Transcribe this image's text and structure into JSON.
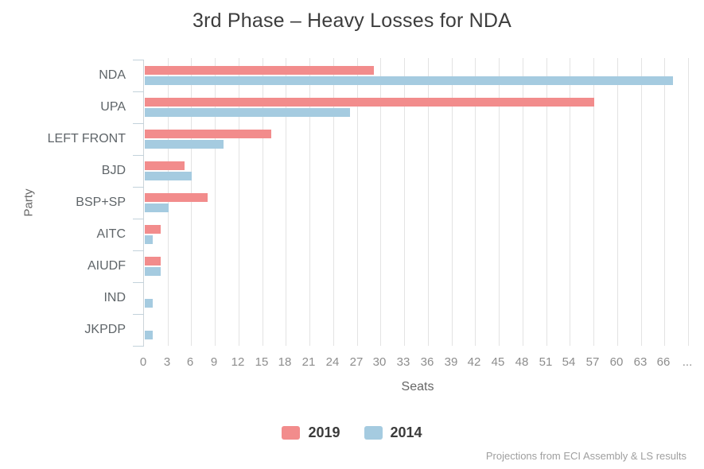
{
  "title": "3rd Phase – Heavy Losses for NDA",
  "chart_data": {
    "type": "bar",
    "orientation": "horizontal",
    "title": "3rd Phase – Heavy Losses for NDA",
    "xlabel": "Seats",
    "ylabel": "Party",
    "categories": [
      "NDA",
      "UPA",
      "LEFT FRONT",
      "BJD",
      "BSP+SP",
      "AITC",
      "AIUDF",
      "IND",
      "JKPDP"
    ],
    "series": [
      {
        "name": "2019",
        "color": "#F28C8C",
        "values": [
          29,
          57,
          16,
          5,
          8,
          2,
          2,
          0,
          0
        ]
      },
      {
        "name": "2014",
        "color": "#A5CBE0",
        "values": [
          67,
          26,
          10,
          6,
          3,
          1,
          2,
          1,
          1
        ]
      }
    ],
    "value_axis": {
      "min": 0,
      "max": 69.6,
      "tick_step": 3,
      "last_numeric_label": 66,
      "overflow_label": "..."
    },
    "grid": true,
    "legend_position": "bottom"
  },
  "footer": {
    "note": "Projections from ECI Assembly & LS results"
  },
  "colors": {
    "bar_2019": "#F28C8C",
    "bar_2014": "#A5CBE0",
    "gridline": "#e3e3e3",
    "axis_line": "#ccd4d9",
    "title_text": "#3d3d3d",
    "label_text": "#5f6569",
    "tick_text": "#8d8d8d"
  }
}
